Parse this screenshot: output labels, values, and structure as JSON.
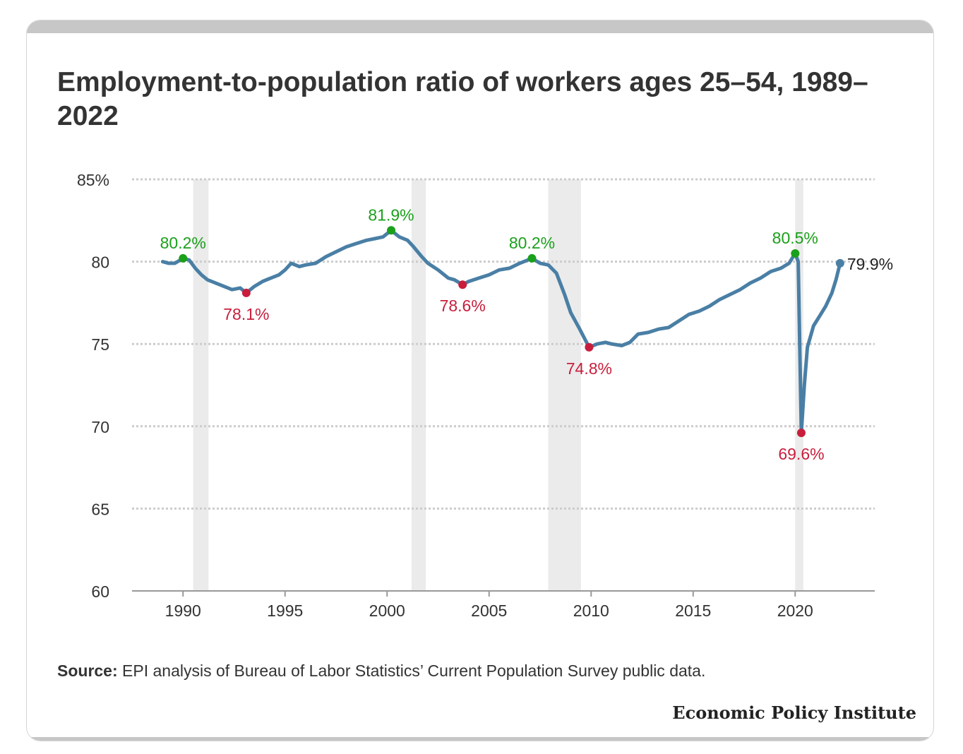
{
  "title": "Employment-to-population ratio of workers ages 25–54, 1989–2022",
  "source_label": "Source:",
  "source_text": " EPI analysis of Bureau of Labor Statistics’ Current Population Survey public data.",
  "brand": "Economic Policy Institute",
  "colors": {
    "line": "#4a7fa5",
    "peak": "#1aa01a",
    "trough": "#c81e3c",
    "recession": "#ebebeb",
    "grid": "#cccccc",
    "axis": "#999999",
    "text": "#333333"
  },
  "chart_data": {
    "type": "line",
    "title": "Employment-to-population ratio of workers ages 25–54, 1989–2022",
    "xlabel": "",
    "ylabel": "",
    "xlim": [
      1987.5,
      2023.9
    ],
    "ylim": [
      60,
      85
    ],
    "x_ticks": [
      1990,
      1995,
      2000,
      2005,
      2010,
      2015,
      2020
    ],
    "y_ticks": [
      {
        "value": 85,
        "label": "85%"
      },
      {
        "value": 80,
        "label": "80"
      },
      {
        "value": 75,
        "label": "75"
      },
      {
        "value": 70,
        "label": "70"
      },
      {
        "value": 65,
        "label": "65"
      },
      {
        "value": 60,
        "label": "60"
      }
    ],
    "grid": "horizontal dotted",
    "recessions": [
      [
        1990.5,
        1991.25
      ],
      [
        2001.2,
        2001.9
      ],
      [
        2007.9,
        2009.5
      ],
      [
        2020.0,
        2020.4
      ]
    ],
    "series": [
      {
        "values": [
          [
            1989.0,
            80.0
          ],
          [
            1989.3,
            79.9
          ],
          [
            1989.6,
            79.9
          ],
          [
            1990.0,
            80.2
          ],
          [
            1990.3,
            80.1
          ],
          [
            1990.6,
            79.6
          ],
          [
            1990.9,
            79.2
          ],
          [
            1991.2,
            78.9
          ],
          [
            1991.6,
            78.7
          ],
          [
            1992.0,
            78.5
          ],
          [
            1992.4,
            78.3
          ],
          [
            1992.8,
            78.4
          ],
          [
            1993.1,
            78.1
          ],
          [
            1993.5,
            78.5
          ],
          [
            1993.9,
            78.8
          ],
          [
            1994.3,
            79.0
          ],
          [
            1994.7,
            79.2
          ],
          [
            1995.0,
            79.5
          ],
          [
            1995.3,
            79.9
          ],
          [
            1995.7,
            79.7
          ],
          [
            1996.0,
            79.8
          ],
          [
            1996.5,
            79.9
          ],
          [
            1997.0,
            80.3
          ],
          [
            1997.5,
            80.6
          ],
          [
            1998.0,
            80.9
          ],
          [
            1998.5,
            81.1
          ],
          [
            1999.0,
            81.3
          ],
          [
            1999.4,
            81.4
          ],
          [
            1999.8,
            81.5
          ],
          [
            2000.2,
            81.9
          ],
          [
            2000.6,
            81.5
          ],
          [
            2001.0,
            81.3
          ],
          [
            2001.3,
            80.9
          ],
          [
            2001.7,
            80.3
          ],
          [
            2002.0,
            79.9
          ],
          [
            2002.5,
            79.5
          ],
          [
            2003.0,
            79.0
          ],
          [
            2003.3,
            78.9
          ],
          [
            2003.7,
            78.6
          ],
          [
            2004.0,
            78.8
          ],
          [
            2004.5,
            79.0
          ],
          [
            2005.0,
            79.2
          ],
          [
            2005.5,
            79.5
          ],
          [
            2006.0,
            79.6
          ],
          [
            2006.5,
            79.9
          ],
          [
            2007.1,
            80.2
          ],
          [
            2007.5,
            79.9
          ],
          [
            2007.9,
            79.8
          ],
          [
            2008.3,
            79.3
          ],
          [
            2008.7,
            78.0
          ],
          [
            2009.0,
            76.9
          ],
          [
            2009.4,
            76.0
          ],
          [
            2009.9,
            74.8
          ],
          [
            2010.3,
            75.0
          ],
          [
            2010.7,
            75.1
          ],
          [
            2011.0,
            75.0
          ],
          [
            2011.5,
            74.9
          ],
          [
            2011.9,
            75.1
          ],
          [
            2012.3,
            75.6
          ],
          [
            2012.8,
            75.7
          ],
          [
            2013.3,
            75.9
          ],
          [
            2013.8,
            76.0
          ],
          [
            2014.3,
            76.4
          ],
          [
            2014.8,
            76.8
          ],
          [
            2015.3,
            77.0
          ],
          [
            2015.8,
            77.3
          ],
          [
            2016.3,
            77.7
          ],
          [
            2016.8,
            78.0
          ],
          [
            2017.3,
            78.3
          ],
          [
            2017.8,
            78.7
          ],
          [
            2018.3,
            79.0
          ],
          [
            2018.8,
            79.4
          ],
          [
            2019.3,
            79.6
          ],
          [
            2019.7,
            79.9
          ],
          [
            2020.0,
            80.5
          ],
          [
            2020.15,
            80.0
          ],
          [
            2020.3,
            69.6
          ],
          [
            2020.45,
            72.5
          ],
          [
            2020.6,
            74.8
          ],
          [
            2020.9,
            76.1
          ],
          [
            2021.2,
            76.7
          ],
          [
            2021.5,
            77.3
          ],
          [
            2021.8,
            78.1
          ],
          [
            2022.0,
            78.9
          ],
          [
            2022.2,
            79.9
          ]
        ]
      }
    ],
    "annotations": [
      {
        "x": 1990.0,
        "y": 80.2,
        "label": "80.2%",
        "kind": "peak"
      },
      {
        "x": 1993.1,
        "y": 78.1,
        "label": "78.1%",
        "kind": "trough"
      },
      {
        "x": 2000.2,
        "y": 81.9,
        "label": "81.9%",
        "kind": "peak"
      },
      {
        "x": 2003.7,
        "y": 78.6,
        "label": "78.6%",
        "kind": "trough"
      },
      {
        "x": 2007.1,
        "y": 80.2,
        "label": "80.2%",
        "kind": "peak"
      },
      {
        "x": 2009.9,
        "y": 74.8,
        "label": "74.8%",
        "kind": "trough"
      },
      {
        "x": 2020.0,
        "y": 80.5,
        "label": "80.5%",
        "kind": "peak"
      },
      {
        "x": 2020.3,
        "y": 69.6,
        "label": "69.6%",
        "kind": "trough"
      },
      {
        "x": 2022.2,
        "y": 79.9,
        "label": "79.9%",
        "kind": "latest"
      }
    ]
  }
}
